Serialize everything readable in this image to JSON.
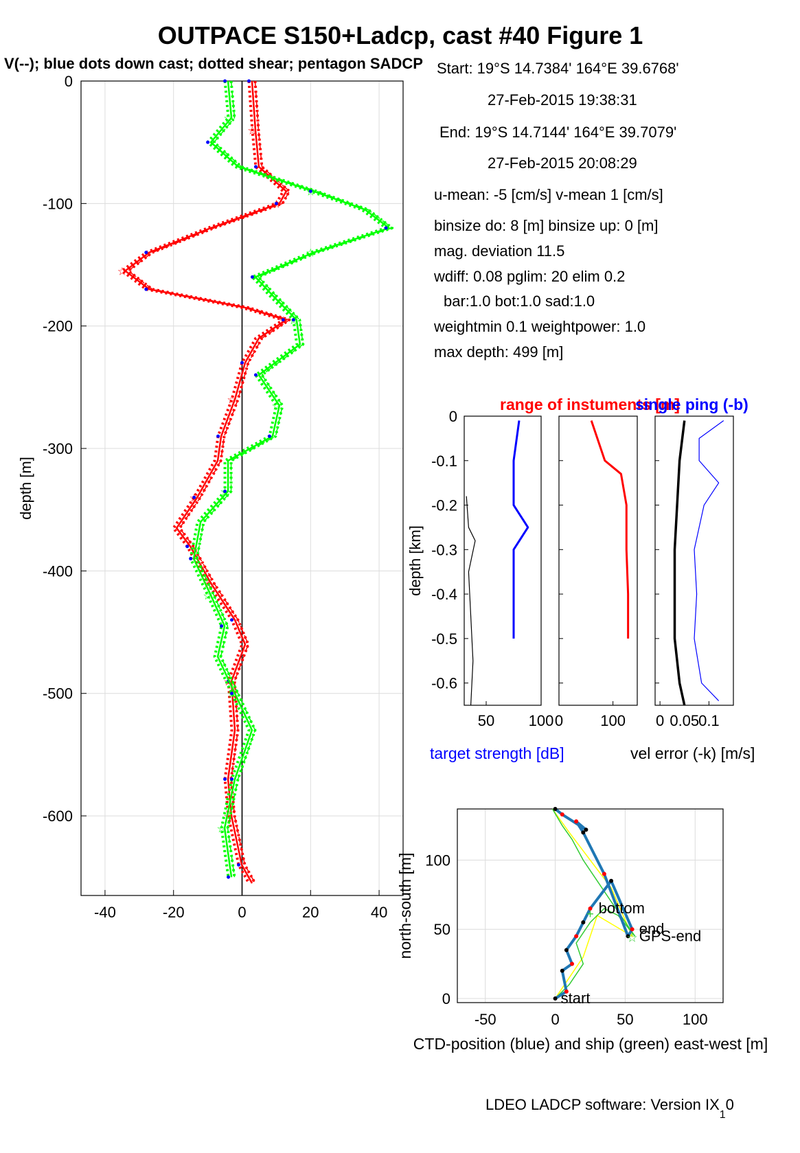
{
  "title": "OUTPACE S150+Ladcp, cast #40  Figure 1",
  "subtitle": "V(--); blue dots down cast; dotted shear; pentagon SADCP",
  "info": {
    "start": "Start:  19°S 14.7384'      164°E 39.6768'",
    "start_time": "27-Feb-2015 19:38:31",
    "end": "End:   19°S 14.7144'      164°E 39.7079'",
    "end_time": "27-Feb-2015 20:08:29",
    "mean": "u-mean:  -5 [cm/s]     v-mean   1 [cm/s]",
    "binsize": "binsize do: 8 [m]  binsize up:  0 [m]",
    "magdev": "mag. deviation 11.5",
    "wdiff": "wdiff: 0.08  pglim: 20  elim 0.2",
    "bar": "bar:1.0 bot:1.0 sad:1.0",
    "weight": "weightmin 0.1  weightpower: 1.0",
    "maxdepth": "max depth: 499 [m]"
  },
  "footer": "LDEO LADCP software: Version IX",
  "footer_sub": "1",
  "footer_tail": "0",
  "colors": {
    "u": "#ff0000",
    "v": "#00ff00",
    "blue": "#0000ff",
    "ctd": "#1f77b4",
    "ship": "#33cc33",
    "yellow": "#ffff00"
  },
  "chart_data": [
    {
      "type": "line",
      "ylabel": "depth [m]",
      "xlim": [
        -47,
        47
      ],
      "ylim": [
        -665,
        0
      ],
      "xticks": [
        "-40",
        "-20",
        "0",
        "20",
        "40"
      ],
      "xtick_values": [
        -40,
        -20,
        0,
        20,
        40
      ],
      "yticks": [
        "0",
        "-100",
        "-200",
        "-300",
        "-400",
        "-500",
        "-600"
      ],
      "ytick_values": [
        0,
        -100,
        -200,
        -300,
        -400,
        -500,
        -600
      ],
      "grid": true,
      "series": [
        {
          "color": "u",
          "depth": [
            0,
            -40,
            -70,
            -90,
            -100,
            -120,
            -140,
            -155,
            -170,
            -185,
            -195,
            -210,
            -230,
            -260,
            -290,
            -310,
            -340,
            -365,
            -380,
            -410,
            -440,
            -460,
            -490,
            -530,
            -570,
            -600,
            -640,
            -655
          ],
          "values": [
            2,
            3,
            4,
            12,
            10,
            -10,
            -28,
            -35,
            -28,
            0,
            12,
            4,
            0,
            -3,
            -7,
            -8,
            -14,
            -20,
            -16,
            -10,
            -3,
            0,
            -4,
            -3,
            -5,
            -4,
            -1,
            2
          ]
        },
        {
          "color": "v",
          "depth": [
            0,
            -30,
            -50,
            -70,
            -90,
            -105,
            -120,
            -140,
            -160,
            -175,
            -195,
            -215,
            -240,
            -265,
            -290,
            -310,
            -335,
            -360,
            -390,
            -420,
            -445,
            -470,
            -500,
            -530,
            -570,
            -610,
            -650
          ],
          "values": [
            -5,
            -4,
            -10,
            -2,
            20,
            35,
            42,
            20,
            3,
            8,
            15,
            16,
            4,
            10,
            8,
            -5,
            -5,
            -13,
            -15,
            -10,
            -6,
            -8,
            -3,
            2,
            -3,
            -6,
            -4
          ]
        }
      ]
    },
    {
      "type": "line",
      "title": "range of instuments [m]",
      "title2": "single ping (-b)",
      "ylabel": "depth [km]",
      "xlabel": "vel error (-k) [m/s]",
      "xlabel_left": "target strength [dB]",
      "ylim": [
        -0.65,
        0
      ],
      "yticks": [
        "0",
        "-0.1",
        "-0.2",
        "-0.3",
        "-0.4",
        "-0.5",
        "-0.6"
      ],
      "ytick_values": [
        0,
        -0.1,
        -0.2,
        -0.3,
        -0.4,
        -0.5,
        -0.6
      ],
      "panel1_xticks": [
        "50",
        "100"
      ],
      "panel2_xticks": [
        "0",
        "100"
      ],
      "panel3_xticks": [
        "0",
        "0.05",
        "0.1"
      ],
      "target_strength": {
        "depth": [
          -0.01,
          -0.1,
          -0.2,
          -0.25,
          -0.3,
          -0.4,
          -0.5
        ],
        "values": [
          80,
          75,
          75,
          88,
          75,
          75,
          75
        ]
      },
      "range": {
        "depth": [
          -0.01,
          -0.1,
          -0.13,
          -0.2,
          -0.3,
          -0.4,
          -0.5
        ],
        "values": [
          60,
          85,
          115,
          125,
          125,
          128,
          128
        ]
      },
      "vel_error": {
        "depth": [
          -0.01,
          -0.1,
          -0.2,
          -0.3,
          -0.4,
          -0.5,
          -0.6,
          -0.65
        ],
        "values": [
          0.05,
          0.04,
          0.035,
          0.03,
          0.03,
          0.03,
          0.04,
          0.05
        ]
      },
      "single_ping": {
        "depth": [
          -0.01,
          -0.05,
          -0.1,
          -0.15,
          -0.2,
          -0.3,
          -0.4,
          -0.5,
          -0.6,
          -0.64
        ],
        "values": [
          0.13,
          0.08,
          0.08,
          0.12,
          0.09,
          0.07,
          0.075,
          0.07,
          0.085,
          0.12
        ]
      }
    },
    {
      "type": "line",
      "xlabel": "CTD-position (blue) and ship (green) east-west [m]",
      "ylabel": "north-south [m]",
      "xlim": [
        -70,
        120
      ],
      "ylim": [
        -3,
        137
      ],
      "xticks": [
        "-50",
        "0",
        "50",
        "100"
      ],
      "xtick_values": [
        -50,
        0,
        50,
        100
      ],
      "yticks": [
        "0",
        "50",
        "100"
      ],
      "ytick_values": [
        0,
        50,
        100
      ],
      "grid": true,
      "labels": [
        "start",
        "bottom",
        "end",
        "GPS-end"
      ],
      "ctd": {
        "x": [
          0,
          8,
          5,
          12,
          8,
          15,
          20,
          25,
          40,
          55,
          52,
          35,
          20,
          15,
          22,
          5,
          0
        ],
        "y": [
          0,
          5,
          20,
          25,
          35,
          45,
          55,
          65,
          85,
          50,
          45,
          90,
          120,
          128,
          122,
          133,
          137
        ]
      },
      "ship": {
        "x": [
          0,
          10,
          20,
          15,
          25,
          35,
          45,
          57,
          40,
          20,
          12,
          5,
          -2
        ],
        "y": [
          0,
          10,
          25,
          40,
          55,
          65,
          60,
          45,
          70,
          100,
          115,
          125,
          137
        ]
      }
    }
  ]
}
